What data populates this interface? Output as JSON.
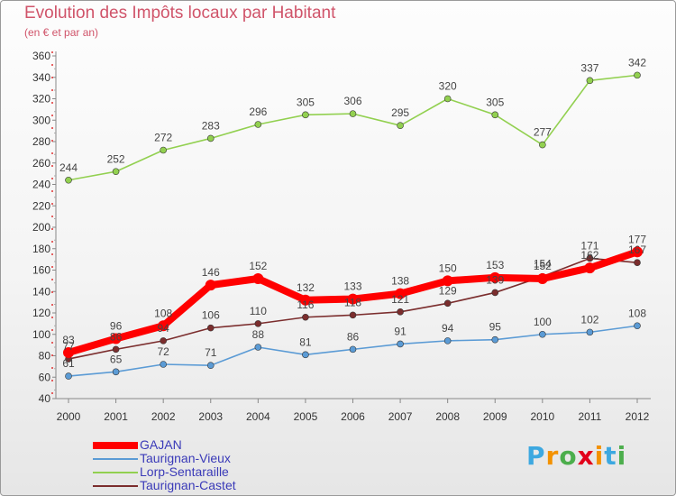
{
  "chart_data": {
    "type": "line",
    "title": "Evolution des Impôts locaux par Habitant",
    "subtitle": "(en € et par an)",
    "xlabel": "",
    "ylabel": "",
    "x": [
      "2000",
      "2001",
      "2002",
      "2003",
      "2004",
      "2005",
      "2006",
      "2007",
      "2008",
      "2009",
      "2010",
      "2011",
      "2012"
    ],
    "ylim": [
      40,
      360
    ],
    "yticks": [
      40,
      60,
      80,
      100,
      120,
      140,
      160,
      180,
      200,
      220,
      240,
      260,
      280,
      300,
      320,
      340,
      360
    ],
    "grid": false,
    "legend_position": "bottom-left",
    "series": [
      {
        "name": "GAJAN",
        "color": "#ff0000",
        "values": [
          83,
          96,
          108,
          146,
          152,
          132,
          133,
          138,
          150,
          153,
          152,
          162,
          177
        ]
      },
      {
        "name": "Taurignan-Vieux",
        "color": "#5b9bd5",
        "values": [
          61,
          65,
          72,
          71,
          88,
          81,
          86,
          91,
          94,
          95,
          100,
          102,
          108
        ]
      },
      {
        "name": "Lorp-Sentaraille",
        "color": "#92d050",
        "values": [
          244,
          252,
          272,
          283,
          296,
          305,
          306,
          295,
          320,
          305,
          277,
          337,
          342
        ]
      },
      {
        "name": "Taurignan-Castet",
        "color": "#7b2d2d",
        "values": [
          77,
          86,
          94,
          106,
          110,
          116,
          118,
          121,
          129,
          139,
          154,
          171,
          167
        ]
      }
    ]
  },
  "logo": {
    "letters": [
      "P",
      "r",
      "o",
      "x",
      "i",
      "t",
      "i"
    ],
    "colors": [
      "#3da8e0",
      "#f39200",
      "#4cae4c",
      "#e2001a",
      "#f39200",
      "#3da8e0",
      "#4cae4c"
    ]
  }
}
